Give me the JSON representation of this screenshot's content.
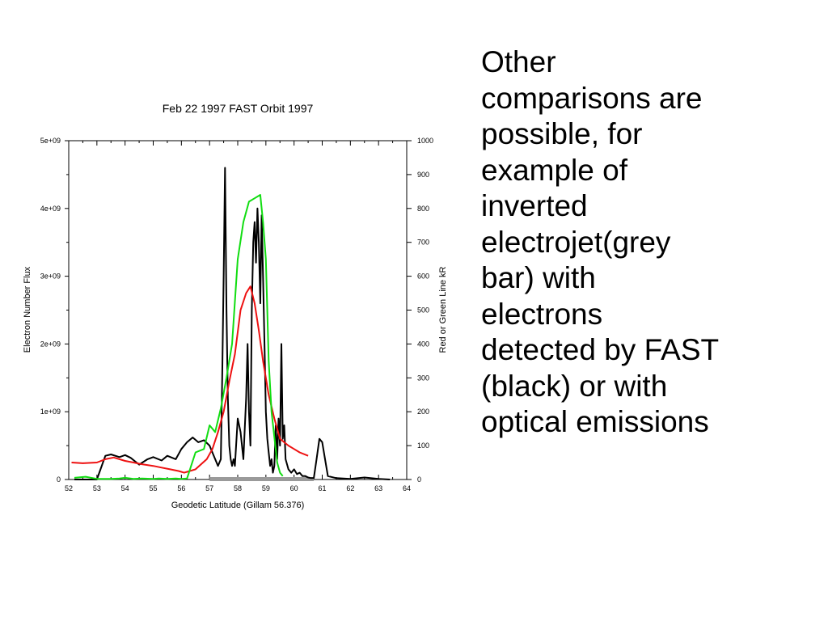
{
  "caption": {
    "lines": [
      "Other",
      "comparisons are",
      "possible, for",
      "example of",
      "inverted",
      "electrojet(grey",
      "bar) with",
      "electrons",
      "detected by FAST",
      "(black) or with",
      "optical emissions"
    ]
  },
  "chart_data": {
    "type": "line",
    "title": "Feb 22 1997 FAST Orbit 1997",
    "xlabel": "Geodetic Latitude (Gillam 56.376)",
    "ylabel": "Electron Number Flux",
    "y2label": "Red or Green Line kR",
    "xlim": [
      52,
      64
    ],
    "ylim": [
      0,
      5000000000
    ],
    "y2lim": [
      0,
      1000
    ],
    "x_ticks": [
      "52",
      "53",
      "54",
      "55",
      "56",
      "57",
      "58",
      "59",
      "60",
      "61",
      "62",
      "63",
      "64"
    ],
    "y_ticks": [
      "0",
      "1e+09",
      "2e+09",
      "3e+09",
      "4e+09",
      "5e+09"
    ],
    "y2_ticks": [
      "0",
      "100",
      "200",
      "300",
      "400",
      "500",
      "600",
      "700",
      "800",
      "900",
      "1000"
    ],
    "colors": {
      "electron": "#000000",
      "red": "#ee1111",
      "green": "#11dd11",
      "electrojet": "#9a9a9a"
    },
    "electrojet_bar": {
      "x_start": 57.0,
      "x_end": 60.7
    },
    "series": [
      {
        "key": "electron",
        "axis": "left",
        "x": [
          52.2,
          53.0,
          53.3,
          53.5,
          53.8,
          54.0,
          54.2,
          54.5,
          54.8,
          55.0,
          55.3,
          55.5,
          55.8,
          56.0,
          56.2,
          56.4,
          56.6,
          56.8,
          57.0,
          57.15,
          57.3,
          57.4,
          57.45,
          57.5,
          57.55,
          57.6,
          57.65,
          57.7,
          57.75,
          57.8,
          57.85,
          57.9,
          58.0,
          58.1,
          58.2,
          58.3,
          58.35,
          58.4,
          58.45,
          58.5,
          58.55,
          58.6,
          58.65,
          58.7,
          58.75,
          58.8,
          58.85,
          58.9,
          58.95,
          59.0,
          59.05,
          59.1,
          59.15,
          59.2,
          59.25,
          59.3,
          59.35,
          59.4,
          59.45,
          59.5,
          59.55,
          59.6,
          59.65,
          59.7,
          59.8,
          59.9,
          60.0,
          60.1,
          60.2,
          60.3,
          60.4,
          60.5,
          60.6,
          60.7,
          60.8,
          60.9,
          61.0,
          61.1,
          61.2,
          61.5,
          62.0,
          62.5,
          63.0,
          63.4
        ],
        "y": [
          0,
          0,
          350000000.0,
          370000000.0,
          330000000.0,
          360000000.0,
          320000000.0,
          220000000.0,
          300000000.0,
          330000000.0,
          280000000.0,
          350000000.0,
          300000000.0,
          450000000.0,
          550000000.0,
          620000000.0,
          550000000.0,
          580000000.0,
          500000000.0,
          350000000.0,
          200000000.0,
          300000000.0,
          1500000000.0,
          3000000000.0,
          4600000000.0,
          2500000000.0,
          1200000000.0,
          500000000.0,
          300000000.0,
          200000000.0,
          300000000.0,
          200000000.0,
          900000000.0,
          700000000.0,
          300000000.0,
          1200000000.0,
          2000000000.0,
          1000000000.0,
          500000000.0,
          2500000000.0,
          3500000000.0,
          3800000000.0,
          3200000000.0,
          4000000000.0,
          3500000000.0,
          2600000000.0,
          3900000000.0,
          3000000000.0,
          2000000000.0,
          1000000000.0,
          600000000.0,
          400000000.0,
          200000000.0,
          300000000.0,
          100000000.0,
          200000000.0,
          800000000.0,
          300000000.0,
          900000000.0,
          500000000.0,
          2000000000.0,
          600000000.0,
          800000000.0,
          300000000.0,
          150000000.0,
          100000000.0,
          150000000.0,
          80000000.0,
          100000000.0,
          50000000.0,
          50000000.0,
          30000000.0,
          20000000.0,
          20000000.0,
          300000000.0,
          600000000.0,
          550000000.0,
          300000000.0,
          50000000.0,
          20000000.0,
          10000000.0,
          30000000.0,
          10000000.0,
          0
        ]
      },
      {
        "key": "red",
        "axis": "right",
        "x": [
          52.1,
          52.5,
          53.0,
          53.3,
          53.6,
          54.0,
          54.3,
          54.6,
          55.0,
          55.3,
          55.6,
          55.9,
          56.1,
          56.3,
          56.5,
          56.7,
          56.9,
          57.1,
          57.3,
          57.5,
          57.7,
          57.9,
          58.1,
          58.3,
          58.45,
          58.6,
          58.75,
          58.9,
          59.1,
          59.3,
          59.5,
          59.8,
          60.0,
          60.2,
          60.5
        ],
        "y": [
          50,
          48,
          50,
          60,
          65,
          55,
          50,
          45,
          40,
          35,
          30,
          25,
          20,
          25,
          30,
          45,
          60,
          90,
          140,
          200,
          290,
          370,
          500,
          550,
          570,
          520,
          440,
          350,
          250,
          180,
          120,
          100,
          90,
          80,
          70
        ]
      },
      {
        "key": "green",
        "axis": "right",
        "x": [
          52.2,
          52.6,
          53.0,
          53.5,
          53.8,
          54.0,
          54.3,
          54.6,
          55.0,
          55.2,
          55.5,
          55.8,
          56.0,
          56.2,
          56.5,
          56.8,
          57.0,
          57.2,
          57.4,
          57.6,
          57.8,
          58.0,
          58.2,
          58.4,
          58.6,
          58.8,
          58.9,
          59.0,
          59.1,
          59.2,
          59.4,
          59.5,
          59.6
        ],
        "y": [
          5,
          8,
          2,
          2,
          3,
          5,
          2,
          3,
          2,
          3,
          2,
          3,
          2,
          3,
          80,
          90,
          160,
          140,
          210,
          300,
          400,
          650,
          760,
          820,
          830,
          840,
          760,
          650,
          350,
          200,
          50,
          20,
          10
        ]
      }
    ]
  }
}
